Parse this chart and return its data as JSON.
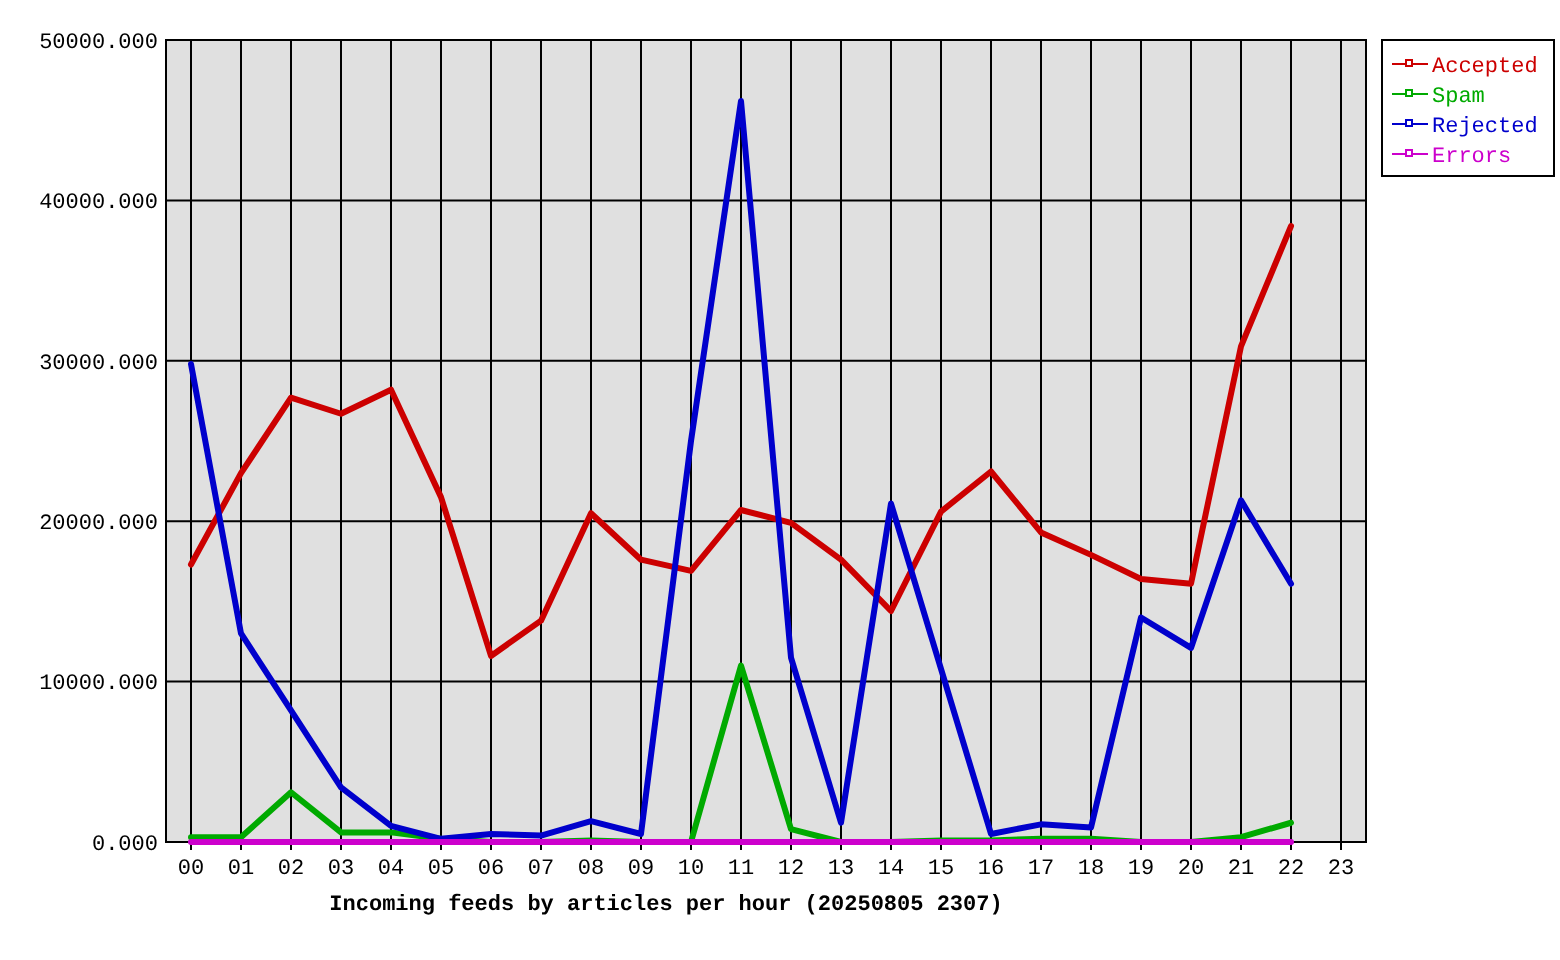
{
  "chart_data": {
    "type": "line",
    "xlabel": "Incoming feeds by articles per hour (20250805 2307)",
    "categories": [
      "00",
      "01",
      "02",
      "03",
      "04",
      "05",
      "06",
      "07",
      "08",
      "09",
      "10",
      "11",
      "12",
      "13",
      "14",
      "15",
      "16",
      "17",
      "18",
      "19",
      "20",
      "21",
      "22",
      "23"
    ],
    "series": [
      {
        "name": "Accepted",
        "color": "#cc0000",
        "values": [
          17300,
          23000,
          27700,
          26700,
          28200,
          21500,
          11600,
          13800,
          20500,
          17600,
          16900,
          20700,
          19900,
          17600,
          14400,
          20600,
          23100,
          19300,
          17900,
          16400,
          16100,
          30900,
          38400,
          null
        ]
      },
      {
        "name": "Spam",
        "color": "#00aa00",
        "values": [
          300,
          300,
          3100,
          600,
          600,
          200,
          0,
          0,
          100,
          0,
          0,
          11000,
          800,
          0,
          0,
          100,
          100,
          200,
          200,
          0,
          0,
          300,
          1200,
          null
        ]
      },
      {
        "name": "Rejected",
        "color": "#0000cc",
        "values": [
          29800,
          13000,
          8200,
          3400,
          1000,
          200,
          500,
          400,
          1300,
          500,
          25000,
          46200,
          11500,
          1200,
          21100,
          10800,
          500,
          1100,
          900,
          14000,
          12100,
          21300,
          16100,
          null
        ]
      },
      {
        "name": "Errors",
        "color": "#cc00cc",
        "values": [
          0,
          0,
          0,
          0,
          0,
          0,
          0,
          0,
          0,
          0,
          0,
          0,
          0,
          0,
          0,
          0,
          0,
          0,
          0,
          0,
          0,
          0,
          0,
          null
        ]
      }
    ],
    "ylim": [
      0,
      50000
    ],
    "yticks": [
      {
        "value": 0,
        "label": "0.000"
      },
      {
        "value": 10000,
        "label": "10000.000"
      },
      {
        "value": 20000,
        "label": "20000.000"
      },
      {
        "value": 30000,
        "label": "30000.000"
      },
      {
        "value": 40000,
        "label": "40000.000"
      },
      {
        "value": 50000,
        "label": "50000.000"
      }
    ],
    "grid": true,
    "legend": "top right",
    "marker": "none",
    "line_style": "solid"
  }
}
